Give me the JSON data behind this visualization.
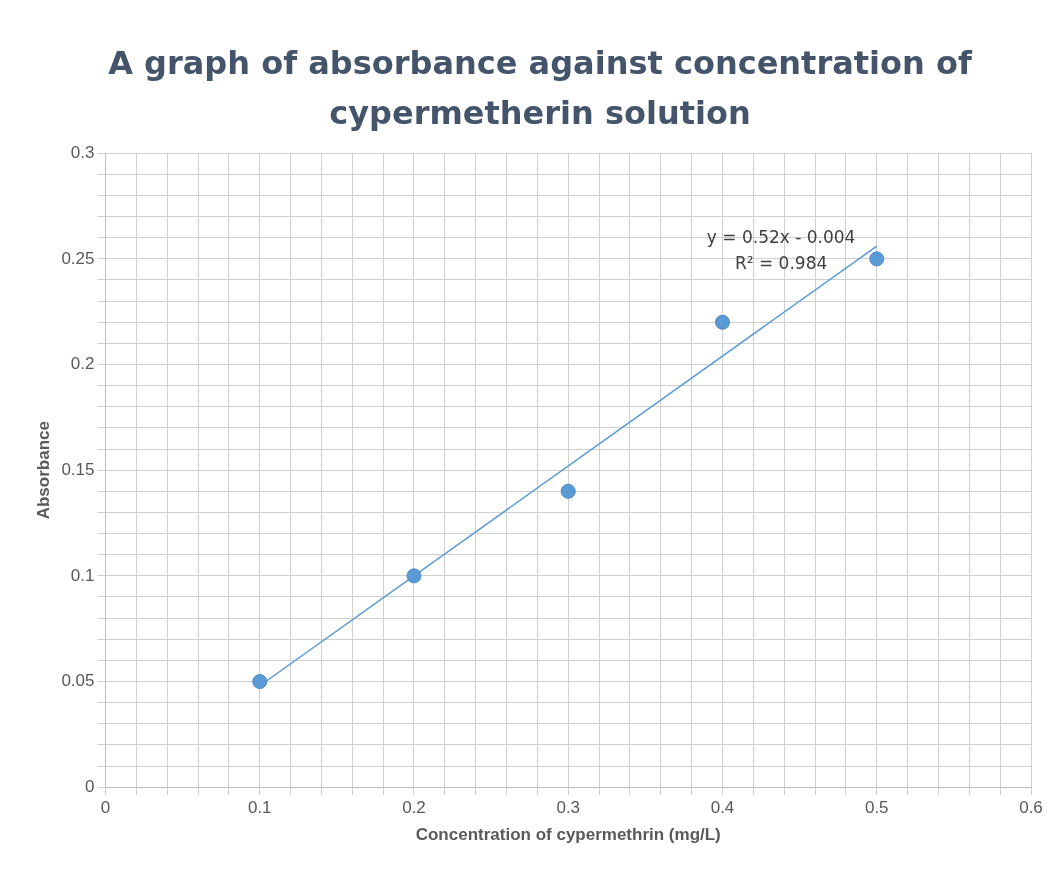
{
  "chart_data": {
    "type": "scatter",
    "title": "A graph of absorbance against concentration of cypermetherin solution",
    "xlabel": "Concentration of cypermethrin (mg/L)",
    "ylabel": "Absorbance",
    "x": [
      0.1,
      0.2,
      0.3,
      0.4,
      0.5
    ],
    "series": [
      {
        "color": "#5b9bd5",
        "values": [
          0.05,
          0.1,
          0.14,
          0.22,
          0.25
        ]
      },
      {
        "type": "line",
        "color": "#5b9bd5",
        "marker": "none",
        "x": [
          0.1,
          0.5
        ],
        "values": [
          0.048,
          0.256
        ]
      }
    ],
    "annotations": [
      "y = 0.52x - 0.004",
      "R² = 0.984"
    ],
    "xlim": [
      0,
      0.6
    ],
    "ylim": [
      0,
      0.3
    ],
    "xticks": [
      0,
      {
        "value": 0.02,
        "label": null
      },
      {
        "value": 0.04,
        "label": null
      },
      {
        "value": 0.06,
        "label": null
      },
      {
        "value": 0.08,
        "label": null
      },
      0.1,
      {
        "value": 0.12,
        "label": null
      },
      {
        "value": 0.14,
        "label": null
      },
      {
        "value": 0.16,
        "label": null
      },
      {
        "value": 0.18,
        "label": null
      },
      0.2,
      {
        "value": 0.22,
        "label": null
      },
      {
        "value": 0.24,
        "label": null
      },
      {
        "value": 0.26,
        "label": null
      },
      {
        "value": 0.28,
        "label": null
      },
      0.3,
      {
        "value": 0.32,
        "label": null
      },
      {
        "value": 0.34,
        "label": null
      },
      {
        "value": 0.36,
        "label": null
      },
      {
        "value": 0.38,
        "label": null
      },
      0.4,
      {
        "value": 0.42,
        "label": null
      },
      {
        "value": 0.44,
        "label": null
      },
      {
        "value": 0.46,
        "label": null
      },
      {
        "value": 0.48,
        "label": null
      },
      0.5,
      {
        "value": 0.52,
        "label": null
      },
      {
        "value": 0.54,
        "label": null
      },
      {
        "value": 0.56,
        "label": null
      },
      {
        "value": 0.58,
        "label": null
      },
      0.6
    ],
    "yticks": [
      0,
      {
        "value": 0.01,
        "label": null
      },
      {
        "value": 0.02,
        "label": null
      },
      {
        "value": 0.03,
        "label": null
      },
      {
        "value": 0.04,
        "label": null
      },
      0.05,
      {
        "value": 0.06,
        "label": null
      },
      {
        "value": 0.07,
        "label": null
      },
      {
        "value": 0.08,
        "label": null
      },
      {
        "value": 0.09,
        "label": null
      },
      0.1,
      {
        "value": 0.11,
        "label": null
      },
      {
        "value": 0.12,
        "label": null
      },
      {
        "value": 0.13,
        "label": null
      },
      {
        "value": 0.14,
        "label": null
      },
      0.15,
      {
        "value": 0.16,
        "label": null
      },
      {
        "value": 0.17,
        "label": null
      },
      {
        "value": 0.18,
        "label": null
      },
      {
        "value": 0.19,
        "label": null
      },
      0.2,
      {
        "value": 0.21,
        "label": null
      },
      {
        "value": 0.22,
        "label": null
      },
      {
        "value": 0.23,
        "label": null
      },
      {
        "value": 0.24,
        "label": null
      },
      0.25,
      {
        "value": 0.26,
        "label": null
      },
      {
        "value": 0.27,
        "label": null
      },
      {
        "value": 0.28,
        "label": null
      },
      {
        "value": 0.29,
        "label": null
      },
      0.3
    ],
    "grid": true,
    "marker": "circle",
    "line_style": "solid"
  }
}
